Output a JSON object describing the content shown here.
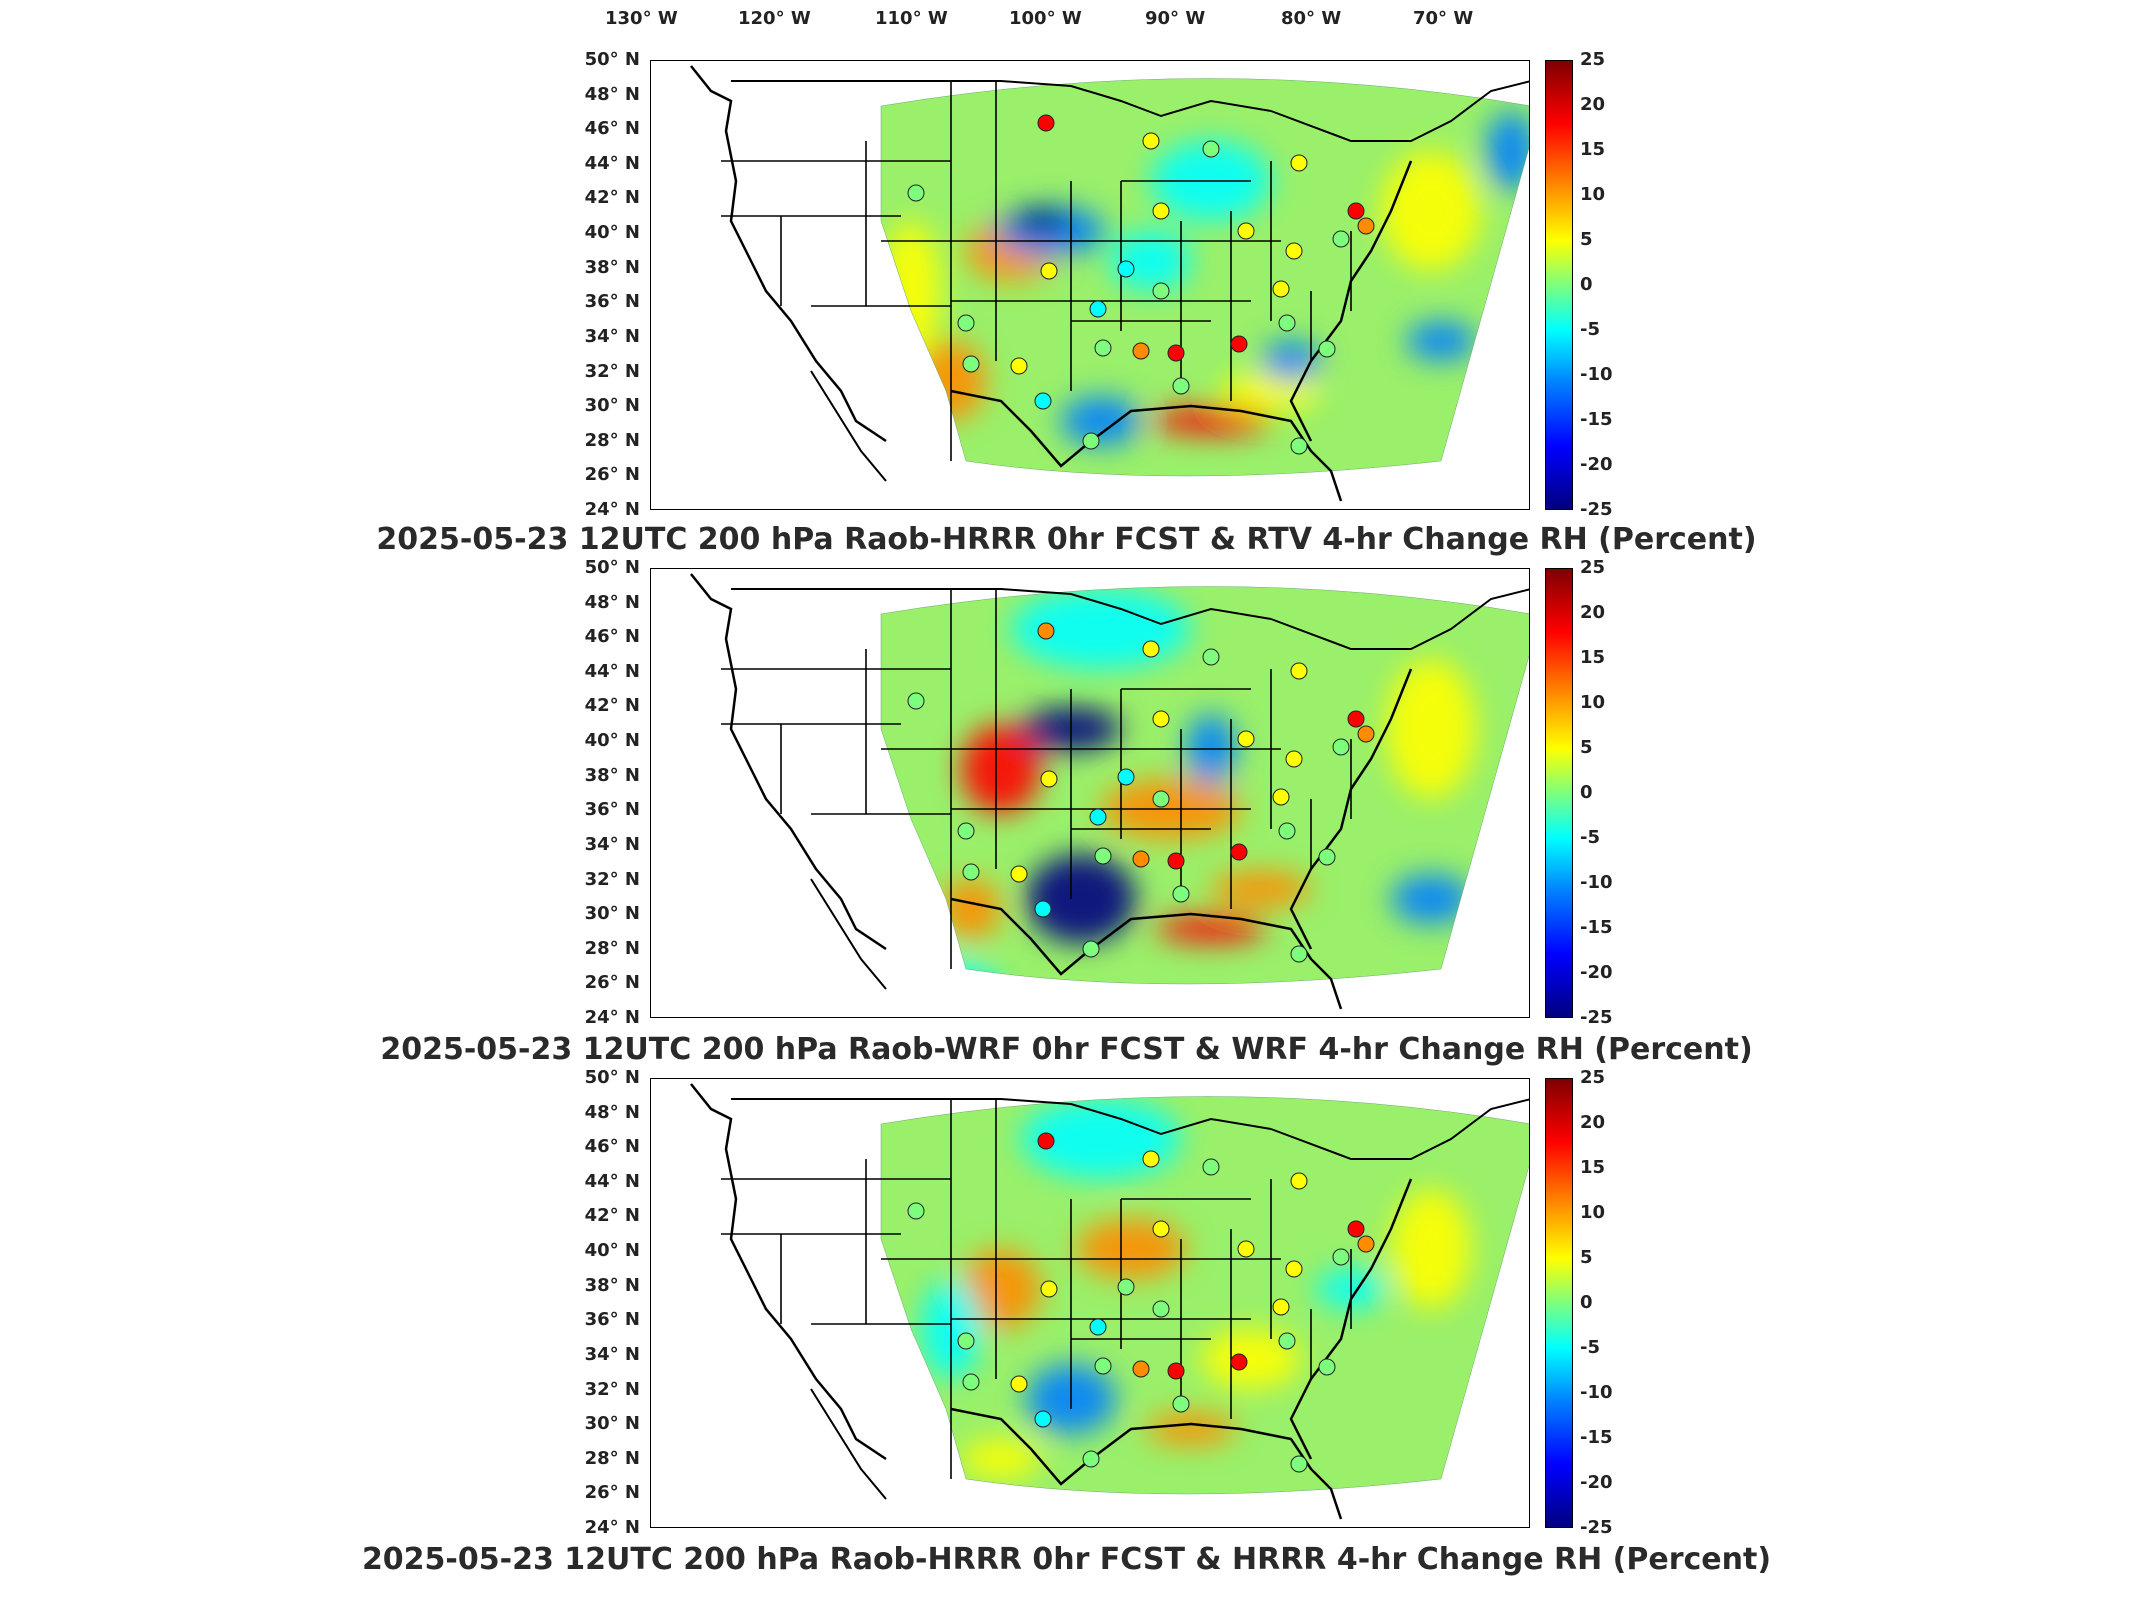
{
  "lon_labels": [
    "130° W",
    "120° W",
    "110° W",
    "100° W",
    "90° W",
    "80° W",
    "70° W"
  ],
  "lat_labels": [
    "50° N",
    "48° N",
    "46° N",
    "44° N",
    "42° N",
    "40° N",
    "38° N",
    "36° N",
    "34° N",
    "32° N",
    "30° N",
    "28° N",
    "26° N",
    "24° N"
  ],
  "colorbar_ticks": [
    "25",
    "20",
    "15",
    "10",
    "5",
    "0",
    "-5",
    "-10",
    "-15",
    "-20",
    "-25"
  ],
  "colorbar_range": [
    -25,
    25
  ],
  "colors": {
    "max": "#7f0000",
    "high": "#ff0000",
    "orange": "#ff8c00",
    "yellow": "#ffff00",
    "zero": "#7dff7d",
    "cyan": "#00ffff",
    "blue": "#0080ff",
    "min": "#00007f"
  },
  "panels": [
    {
      "title": "2025-05-23 12UTC 200 hPa Raob-HRRR 0hr FCST & RTV 4-hr Change RH (Percent)"
    },
    {
      "title": "2025-05-23 12UTC 200 hPa Raob-WRF 0hr FCST & WRF 4-hr Change RH (Percent)"
    },
    {
      "title": "2025-05-23 12UTC 200 hPa Raob-HRRR 0hr FCST & HRRR 4-hr Change RH (Percent)"
    }
  ]
}
